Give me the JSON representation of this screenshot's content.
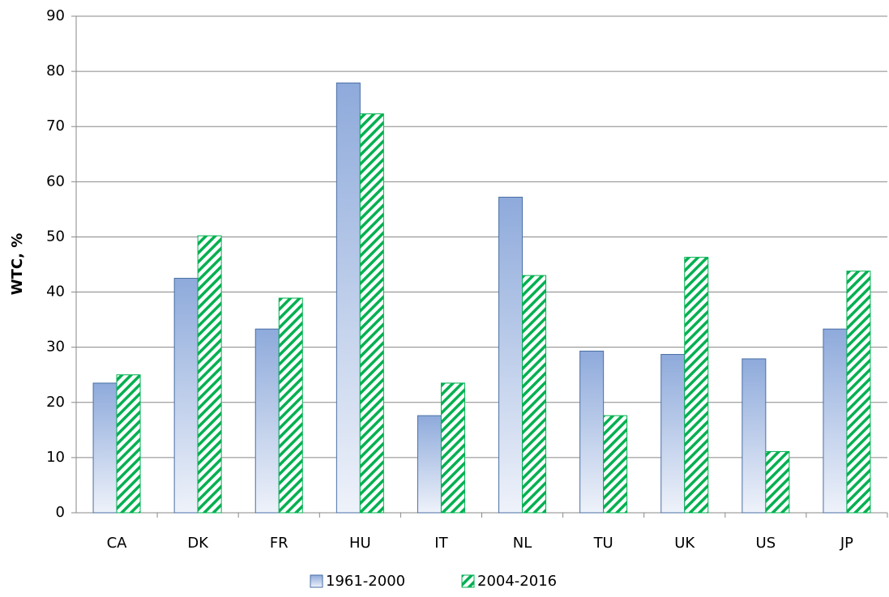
{
  "chart_data": {
    "type": "bar",
    "y_label": "WTC, %",
    "categories": [
      "CA",
      "DK",
      "FR",
      "HU",
      "IT",
      "NL",
      "TU",
      "UK",
      "US",
      "JP"
    ],
    "series": [
      {
        "name": "1961-2000",
        "color": "#8eaadb",
        "values": [
          23.5,
          42.5,
          33.3,
          77.9,
          17.6,
          57.2,
          29.3,
          28.7,
          27.9,
          33.3
        ]
      },
      {
        "name": "2004-2016",
        "color": "#00b050",
        "values": [
          25,
          50.2,
          38.9,
          72.3,
          23.5,
          43,
          17.6,
          46.3,
          11.1,
          43.8
        ]
      }
    ],
    "ylim": [
      0,
      90
    ],
    "yticks": [
      0,
      10,
      20,
      30,
      40,
      50,
      60,
      70,
      80,
      90
    ],
    "grid": true
  }
}
